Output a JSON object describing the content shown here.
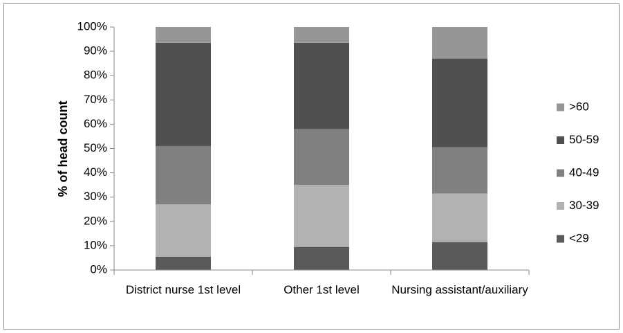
{
  "chart_data": {
    "type": "stacked_bar",
    "y_label": "% of head count",
    "categories": [
      "District nurse 1st level",
      "Other 1st level",
      "Nursing assistant/auxiliary"
    ],
    "series": [
      {
        "name": "<29",
        "color": "#5a5a5a",
        "values": [
          5.5,
          9.5,
          11.5
        ]
      },
      {
        "name": "30-39",
        "color": "#b2b2b2",
        "values": [
          21.5,
          25.5,
          20
        ]
      },
      {
        "name": "40-49",
        "color": "#808080",
        "values": [
          24,
          23,
          19
        ]
      },
      {
        "name": "50-59",
        "color": "#505050",
        "values": [
          42.5,
          35.5,
          36.5
        ]
      },
      {
        "name": ">60",
        "color": "#969696",
        "values": [
          6.5,
          6.5,
          13
        ]
      }
    ],
    "ylim": [
      0,
      100
    ],
    "yticks": [
      {
        "value": 0,
        "label": "0%"
      },
      {
        "value": 10,
        "label": "10%"
      },
      {
        "value": 20,
        "label": "20%"
      },
      {
        "value": 30,
        "label": "30%"
      },
      {
        "value": 40,
        "label": "40%"
      },
      {
        "value": 50,
        "label": "50%"
      },
      {
        "value": 60,
        "label": "60%"
      },
      {
        "value": 70,
        "label": "70%"
      },
      {
        "value": 80,
        "label": "80%"
      },
      {
        "value": 90,
        "label": "90%"
      },
      {
        "value": 100,
        "label": "100%"
      }
    ],
    "legend": "right"
  }
}
